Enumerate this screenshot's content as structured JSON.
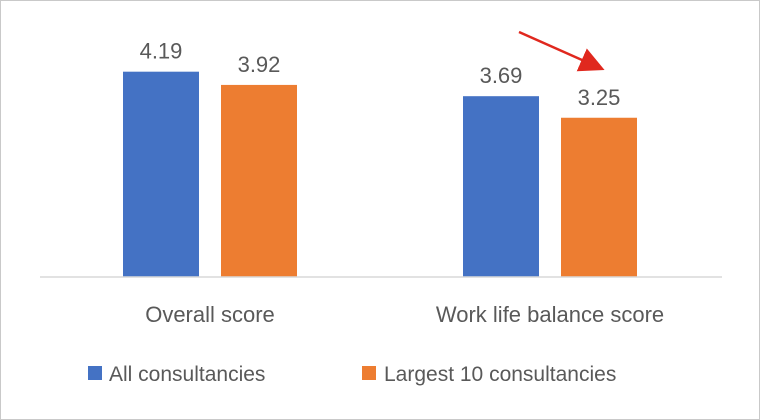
{
  "chart_data": {
    "type": "bar",
    "title": "",
    "xlabel": "",
    "ylabel": "",
    "ylim": [
      0,
      4.5
    ],
    "grid": false,
    "legend_position": "bottom",
    "categories": [
      "Overall score",
      "Work life balance score"
    ],
    "series": [
      {
        "name": "All consultancies",
        "values": [
          4.19,
          3.69
        ],
        "labels": [
          "4.19",
          "3.69"
        ],
        "color": "#4472C4"
      },
      {
        "name": "Largest 10 consultancies",
        "values": [
          3.92,
          3.25
        ],
        "labels": [
          "3.92",
          "3.25"
        ],
        "color": "#ED7D31"
      }
    ],
    "annotations": [
      {
        "type": "arrow",
        "color": "#E0281E",
        "points_to": "Largest 10 consultancies — Work life balance score"
      }
    ]
  }
}
